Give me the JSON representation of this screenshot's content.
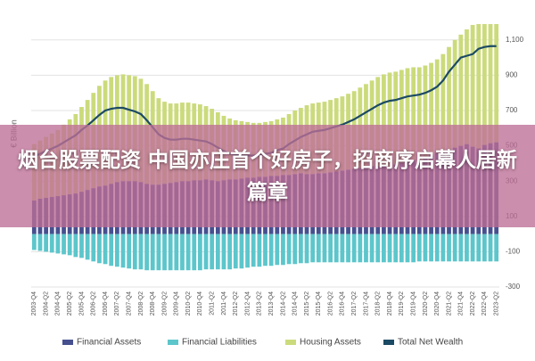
{
  "chart_data": {
    "type": "bar",
    "y_label": "€ Billion",
    "overlay_text": "烟台股票配资 中国亦庄首个好房子，招商序启幕人居新篇章",
    "categories": [
      "2003-Q4",
      null,
      "2004-Q2",
      null,
      "2004-Q4",
      null,
      "2005-Q2",
      null,
      "2005-Q4",
      null,
      "2006-Q2",
      null,
      "2006-Q4",
      null,
      "2007-Q2",
      null,
      "2007-Q4",
      null,
      "2008-Q2",
      null,
      "2008-Q4",
      null,
      "2009-Q2",
      null,
      "2009-Q4",
      null,
      "2010-Q2",
      null,
      "2010-Q4",
      null,
      "2011-Q2",
      null,
      "2011-Q4",
      null,
      "2012-Q2",
      null,
      "2012-Q4",
      null,
      "2013-Q2",
      null,
      "2013-Q4",
      null,
      "2014-Q2",
      null,
      "2014-Q4",
      null,
      "2015-Q2",
      null,
      "2015-Q4",
      null,
      "2016-Q2",
      null,
      "2016-Q4",
      null,
      "2017-Q2",
      null,
      "2017-Q4",
      null,
      "2018-Q2",
      null,
      "2018-Q4",
      null,
      "2019-Q2",
      null,
      "2019-Q4",
      null,
      "2020-Q2",
      null,
      "2020-Q4",
      null,
      "2021-Q2",
      null,
      "2021-Q4",
      null,
      "2022-Q2",
      null,
      "2022-Q4",
      null,
      "2023-Q2"
    ],
    "series": [
      {
        "name": "Financial Assets",
        "color": "#46508f",
        "type": "bar",
        "values": [
          190,
          200,
          205,
          210,
          215,
          220,
          225,
          230,
          240,
          250,
          260,
          270,
          275,
          285,
          295,
          300,
          300,
          300,
          295,
          285,
          280,
          280,
          285,
          290,
          295,
          300,
          300,
          305,
          305,
          310,
          305,
          300,
          305,
          310,
          310,
          315,
          320,
          320,
          325,
          325,
          330,
          330,
          335,
          335,
          340,
          345,
          340,
          340,
          345,
          345,
          350,
          355,
          360,
          365,
          370,
          375,
          380,
          385,
          385,
          385,
          380,
          395,
          405,
          410,
          420,
          410,
          430,
          445,
          460,
          470,
          480,
          490,
          500,
          510,
          495,
          485,
          505,
          515,
          520
        ]
      },
      {
        "name": "Financial Liabilities",
        "color": "#5cc6cb",
        "type": "bar",
        "values": [
          -90,
          -95,
          -100,
          -105,
          -110,
          -115,
          -120,
          -130,
          -135,
          -145,
          -155,
          -165,
          -170,
          -180,
          -185,
          -190,
          -195,
          -200,
          -200,
          -205,
          -205,
          -205,
          -205,
          -205,
          -205,
          -205,
          -205,
          -205,
          -205,
          -200,
          -200,
          -200,
          -200,
          -200,
          -195,
          -195,
          -190,
          -185,
          -185,
          -180,
          -180,
          -175,
          -175,
          -170,
          -170,
          -165,
          -165,
          -160,
          -160,
          -160,
          -160,
          -160,
          -160,
          -160,
          -160,
          -160,
          -160,
          -160,
          -160,
          -160,
          -160,
          -160,
          -160,
          -160,
          -160,
          -155,
          -155,
          -155,
          -155,
          -155,
          -155,
          -155,
          -155,
          -155,
          -155,
          -155,
          -155,
          -155,
          -155
        ]
      },
      {
        "name": "Housing Assets",
        "color": "#cbdb7c",
        "type": "bar",
        "values": [
          320,
          330,
          345,
          360,
          375,
          400,
          425,
          450,
          480,
          510,
          540,
          570,
          595,
          605,
          605,
          605,
          600,
          595,
          585,
          565,
          530,
          490,
          465,
          450,
          445,
          445,
          445,
          435,
          430,
          415,
          405,
          390,
          365,
          345,
          335,
          325,
          315,
          310,
          305,
          310,
          310,
          320,
          325,
          345,
          360,
          370,
          390,
          400,
          400,
          405,
          410,
          415,
          420,
          430,
          440,
          455,
          470,
          485,
          505,
          520,
          535,
          525,
          525,
          530,
          525,
          535,
          525,
          525,
          530,
          550,
          580,
          610,
          630,
          650,
          690,
          705,
          685,
          675,
          670
        ]
      },
      {
        "name": "Total Net Wealth",
        "color": "#1c4a64",
        "type": "line",
        "values": [
          440,
          455,
          470,
          485,
          500,
          520,
          540,
          560,
          590,
          615,
          645,
          675,
          700,
          710,
          715,
          715,
          705,
          695,
          680,
          645,
          605,
          565,
          545,
          535,
          535,
          540,
          540,
          535,
          530,
          525,
          510,
          490,
          470,
          455,
          450,
          445,
          445,
          445,
          445,
          455,
          460,
          475,
          485,
          510,
          530,
          550,
          565,
          580,
          585,
          590,
          600,
          610,
          620,
          635,
          650,
          670,
          690,
          710,
          730,
          745,
          755,
          760,
          770,
          780,
          785,
          790,
          800,
          815,
          835,
          870,
          920,
          960,
          1000,
          1010,
          1020,
          1050,
          1060,
          1065,
          1065
        ]
      }
    ],
    "ylim": [
      -300,
      1200
    ],
    "yticks": [
      -300,
      -100,
      100,
      300,
      500,
      700,
      {
        "value": 900,
        "label": "900"
      },
      {
        "value": 1100,
        "label": "1,100"
      }
    ],
    "grid": true,
    "legend": "bottom"
  }
}
